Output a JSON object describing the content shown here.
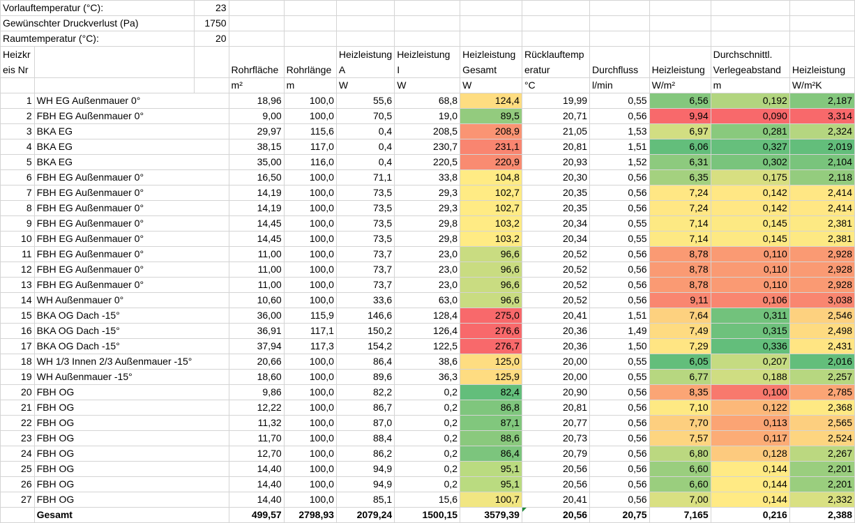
{
  "params": [
    {
      "label": "Vorlauftemperatur (°C):",
      "value": "23"
    },
    {
      "label": "Gewünschter Druckverlust (Pa)",
      "value": "1750"
    },
    {
      "label": "Raumtemperatur (°C):",
      "value": "20"
    }
  ],
  "header": {
    "col_a_top": "Heizkr",
    "col_a_bottom": "eis Nr",
    "cols": [
      {
        "line1": "",
        "line2": "Rohrfläche",
        "unit": "m²"
      },
      {
        "line1": "",
        "line2": "Rohrlänge",
        "unit": "m"
      },
      {
        "line1": "Heizleistung",
        "line2": "A",
        "unit": "W"
      },
      {
        "line1": "Heizleistung",
        "line2": "I",
        "unit": "W"
      },
      {
        "line1": "Heizleistung",
        "line2": "Gesamt",
        "unit": "W"
      },
      {
        "line1": "Rücklauftemp",
        "line2": "eratur",
        "unit": "°C"
      },
      {
        "line1": "",
        "line2": "Durchfluss",
        "unit": "l/min"
      },
      {
        "line1": "",
        "line2": "Heizleistung",
        "unit": "W/m²"
      },
      {
        "line1": "Durchschnittl.",
        "line2": "Verlegeabstand",
        "unit": "m"
      },
      {
        "line1": "",
        "line2": "Heizleistung",
        "unit": "W/m²K"
      }
    ]
  },
  "rows": [
    {
      "nr": "1",
      "name": "WH EG Außenmauer 0°",
      "rf": "18,96",
      "rl": "100,0",
      "ha": "55,6",
      "hi": "68,8",
      "hg": "124,4",
      "rt": "19,99",
      "df": "0,55",
      "hw": "6,56",
      "va": "0,192",
      "hk": "2,187",
      "hg_c": "#fedd81",
      "hw_c": "#84c77d",
      "va_c": "#b2d57f",
      "hk_c": "#84c77d"
    },
    {
      "nr": "2",
      "name": "FBH EG Außenmauer 0°",
      "rf": "9,00",
      "rl": "100,0",
      "ha": "70,5",
      "hi": "19,0",
      "hg": "89,5",
      "rt": "20,71",
      "df": "0,56",
      "hw": "9,94",
      "va": "0,090",
      "hk": "3,314",
      "hg_c": "#93cb7e",
      "hw_c": "#f8696b",
      "va_c": "#f8696b",
      "hk_c": "#f8696b"
    },
    {
      "nr": "3",
      "name": "BKA EG",
      "rf": "29,97",
      "rl": "115,6",
      "ha": "0,4",
      "hi": "208,5",
      "hg": "208,9",
      "rt": "21,05",
      "df": "1,53",
      "hw": "6,97",
      "va": "0,281",
      "hk": "2,324",
      "hg_c": "#fa9473",
      "hw_c": "#d2de82",
      "va_c": "#89c97d",
      "hk_c": "#b5d680"
    },
    {
      "nr": "4",
      "name": "BKA EG",
      "rf": "38,15",
      "rl": "117,0",
      "ha": "0,4",
      "hi": "230,7",
      "hg": "231,1",
      "rt": "20,81",
      "df": "1,51",
      "hw": "6,06",
      "va": "0,327",
      "hk": "2,019",
      "hg_c": "#f98570",
      "hw_c": "#63be7b",
      "va_c": "#66bf7c",
      "hk_c": "#63be7b"
    },
    {
      "nr": "5",
      "name": "BKA EG",
      "rf": "35,00",
      "rl": "116,0",
      "ha": "0,4",
      "hi": "220,5",
      "hg": "220,9",
      "rt": "20,93",
      "df": "1,52",
      "hw": "6,31",
      "va": "0,302",
      "hk": "2,104",
      "hg_c": "#f98b71",
      "hw_c": "#8dca7e",
      "va_c": "#79c47c",
      "hk_c": "#79c47c"
    },
    {
      "nr": "6",
      "name": "FBH EG Außenmauer 0°",
      "rf": "16,50",
      "rl": "100,0",
      "ha": "71,1",
      "hi": "33,8",
      "hg": "104,8",
      "rt": "20,30",
      "df": "0,56",
      "hw": "6,35",
      "va": "0,175",
      "hk": "2,118",
      "hg_c": "#ffeb84",
      "hw_c": "#a4d17f",
      "va_c": "#d7df81",
      "hk_c": "#94cc7e"
    },
    {
      "nr": "7",
      "name": "FBH EG Außenmauer 0°",
      "rf": "14,19",
      "rl": "100,0",
      "ha": "73,5",
      "hi": "29,3",
      "hg": "102,7",
      "rt": "20,35",
      "df": "0,56",
      "hw": "7,24",
      "va": "0,142",
      "hk": "2,414",
      "hg_c": "#ffeb84",
      "hw_c": "#ffe784",
      "va_c": "#ffe784",
      "hk_c": "#ffe784"
    },
    {
      "nr": "8",
      "name": "FBH EG Außenmauer 0°",
      "rf": "14,19",
      "rl": "100,0",
      "ha": "73,5",
      "hi": "29,3",
      "hg": "102,7",
      "rt": "20,35",
      "df": "0,56",
      "hw": "7,24",
      "va": "0,142",
      "hk": "2,414",
      "hg_c": "#ffeb84",
      "hw_c": "#ffe784",
      "va_c": "#ffe784",
      "hk_c": "#ffe784"
    },
    {
      "nr": "9",
      "name": "FBH EG Außenmauer 0°",
      "rf": "14,45",
      "rl": "100,0",
      "ha": "73,5",
      "hi": "29,8",
      "hg": "103,2",
      "rt": "20,34",
      "df": "0,55",
      "hw": "7,14",
      "va": "0,145",
      "hk": "2,381",
      "hg_c": "#ffeb84",
      "hw_c": "#fde983",
      "va_c": "#fde983",
      "hk_c": "#fde983"
    },
    {
      "nr": "10",
      "name": "FBH EG Außenmauer 0°",
      "rf": "14,45",
      "rl": "100,0",
      "ha": "73,5",
      "hi": "29,8",
      "hg": "103,2",
      "rt": "20,34",
      "df": "0,55",
      "hw": "7,14",
      "va": "0,145",
      "hk": "2,381",
      "hg_c": "#ffeb84",
      "hw_c": "#fde983",
      "va_c": "#fde983",
      "hk_c": "#fde983"
    },
    {
      "nr": "11",
      "name": "FBH EG Außenmauer 0°",
      "rf": "11,00",
      "rl": "100,0",
      "ha": "73,7",
      "hi": "23,0",
      "hg": "96,6",
      "rt": "20,52",
      "df": "0,56",
      "hw": "8,78",
      "va": "0,110",
      "hk": "2,928",
      "hg_c": "#c9dc81",
      "hw_c": "#fa9a73",
      "va_c": "#fa9a73",
      "hk_c": "#fa9a73"
    },
    {
      "nr": "12",
      "name": "FBH EG Außenmauer 0°",
      "rf": "11,00",
      "rl": "100,0",
      "ha": "73,7",
      "hi": "23,0",
      "hg": "96,6",
      "rt": "20,52",
      "df": "0,56",
      "hw": "8,78",
      "va": "0,110",
      "hk": "2,928",
      "hg_c": "#c9dc81",
      "hw_c": "#fa9a73",
      "va_c": "#fa9a73",
      "hk_c": "#fa9a73"
    },
    {
      "nr": "13",
      "name": "FBH EG Außenmauer 0°",
      "rf": "11,00",
      "rl": "100,0",
      "ha": "73,7",
      "hi": "23,0",
      "hg": "96,6",
      "rt": "20,52",
      "df": "0,56",
      "hw": "8,78",
      "va": "0,110",
      "hk": "2,928",
      "hg_c": "#c9dc81",
      "hw_c": "#fa9a73",
      "va_c": "#fa9a73",
      "hk_c": "#fa9a73"
    },
    {
      "nr": "14",
      "name": "WH Außenmauer 0°",
      "rf": "10,60",
      "rl": "100,0",
      "ha": "33,6",
      "hi": "63,0",
      "hg": "96,6",
      "rt": "20,52",
      "df": "0,56",
      "hw": "9,11",
      "va": "0,106",
      "hk": "3,038",
      "hg_c": "#c9dc81",
      "hw_c": "#f98670",
      "va_c": "#f98670",
      "hk_c": "#f98670"
    },
    {
      "nr": "15",
      "name": "BKA OG Dach -15°",
      "rf": "36,00",
      "rl": "115,9",
      "ha": "146,6",
      "hi": "128,4",
      "hg": "275,0",
      "rt": "20,41",
      "df": "1,51",
      "hw": "7,64",
      "va": "0,311",
      "hk": "2,546",
      "hg_c": "#f8696b",
      "hw_c": "#fdd17f",
      "va_c": "#72c27c",
      "hk_c": "#fdd17f"
    },
    {
      "nr": "16",
      "name": "BKA OG Dach -15°",
      "rf": "36,91",
      "rl": "117,1",
      "ha": "150,2",
      "hi": "126,4",
      "hg": "276,6",
      "rt": "20,36",
      "df": "1,49",
      "hw": "7,49",
      "va": "0,315",
      "hk": "2,498",
      "hg_c": "#f8696b",
      "hw_c": "#fedb81",
      "va_c": "#6ec17c",
      "hk_c": "#fedb81"
    },
    {
      "nr": "17",
      "name": "BKA OG Dach -15°",
      "rf": "37,94",
      "rl": "117,3",
      "ha": "154,2",
      "hi": "122,5",
      "hg": "276,7",
      "rt": "20,36",
      "df": "1,50",
      "hw": "7,29",
      "va": "0,336",
      "hk": "2,431",
      "hg_c": "#f8696b",
      "hw_c": "#ffe583",
      "va_c": "#63be7b",
      "hk_c": "#ffe583"
    },
    {
      "nr": "18",
      "name": "WH 1/3 Innen 2/3 Außenmauer -15°",
      "rf": "20,66",
      "rl": "100,0",
      "ha": "86,4",
      "hi": "38,6",
      "hg": "125,0",
      "rt": "20,00",
      "df": "0,55",
      "hw": "6,05",
      "va": "0,207",
      "hk": "2,016",
      "hg_c": "#fedd81",
      "hw_c": "#63be7b",
      "va_c": "#c5db81",
      "hk_c": "#63be7b"
    },
    {
      "nr": "19",
      "name": "WH Außenmauer -15°",
      "rf": "18,60",
      "rl": "100,0",
      "ha": "89,6",
      "hi": "36,3",
      "hg": "125,9",
      "rt": "20,00",
      "df": "0,55",
      "hw": "6,77",
      "va": "0,188",
      "hk": "2,257",
      "hg_c": "#fedc81",
      "hw_c": "#b7d780",
      "va_c": "#cfdd82",
      "hk_c": "#b7d780"
    },
    {
      "nr": "20",
      "name": "FBH OG",
      "rf": "9,86",
      "rl": "100,0",
      "ha": "82,2",
      "hi": "0,2",
      "hg": "82,4",
      "rt": "20,90",
      "df": "0,56",
      "hw": "8,35",
      "va": "0,100",
      "hk": "2,785",
      "hg_c": "#63be7b",
      "hw_c": "#fba575",
      "va_c": "#f8796d",
      "hk_c": "#fba575"
    },
    {
      "nr": "21",
      "name": "FBH OG",
      "rf": "12,22",
      "rl": "100,0",
      "ha": "86,7",
      "hi": "0,2",
      "hg": "86,8",
      "rt": "20,81",
      "df": "0,56",
      "hw": "7,10",
      "va": "0,122",
      "hk": "2,368",
      "hg_c": "#7fc67d",
      "hw_c": "#fee983",
      "va_c": "#fcb879",
      "hk_c": "#fee983"
    },
    {
      "nr": "22",
      "name": "FBH OG",
      "rf": "11,32",
      "rl": "100,0",
      "ha": "87,0",
      "hi": "0,2",
      "hg": "87,1",
      "rt": "20,77",
      "df": "0,56",
      "hw": "7,70",
      "va": "0,113",
      "hk": "2,565",
      "hg_c": "#81c77d",
      "hw_c": "#fdcf7f",
      "va_c": "#fba474",
      "hk_c": "#fdcf7f"
    },
    {
      "nr": "23",
      "name": "FBH OG",
      "rf": "11,70",
      "rl": "100,0",
      "ha": "88,4",
      "hi": "0,2",
      "hg": "88,6",
      "rt": "20,73",
      "df": "0,56",
      "hw": "7,57",
      "va": "0,117",
      "hk": "2,524",
      "hg_c": "#8ac97d",
      "hw_c": "#fdd580",
      "va_c": "#fcac76",
      "hk_c": "#fdd580"
    },
    {
      "nr": "24",
      "name": "FBH OG",
      "rf": "12,70",
      "rl": "100,0",
      "ha": "86,2",
      "hi": "0,2",
      "hg": "86,4",
      "rt": "20,79",
      "df": "0,56",
      "hw": "6,80",
      "va": "0,128",
      "hk": "2,267",
      "hg_c": "#7cc57d",
      "hw_c": "#bbd880",
      "va_c": "#fdca7e",
      "hk_c": "#bbd880"
    },
    {
      "nr": "25",
      "name": "FBH OG",
      "rf": "14,40",
      "rl": "100,0",
      "ha": "94,9",
      "hi": "0,2",
      "hg": "95,1",
      "rt": "20,56",
      "df": "0,56",
      "hw": "6,60",
      "va": "0,144",
      "hk": "2,201",
      "hg_c": "#badb80",
      "hw_c": "#9ace7e",
      "va_c": "#ffea84",
      "hk_c": "#9ace7e"
    },
    {
      "nr": "26",
      "name": "FBH OG",
      "rf": "14,40",
      "rl": "100,0",
      "ha": "94,9",
      "hi": "0,2",
      "hg": "95,1",
      "rt": "20,56",
      "df": "0,56",
      "hw": "6,60",
      "va": "0,144",
      "hk": "2,201",
      "hg_c": "#badb80",
      "hw_c": "#9ace7e",
      "va_c": "#ffea84",
      "hk_c": "#9ace7e"
    },
    {
      "nr": "27",
      "name": "FBH OG",
      "rf": "14,40",
      "rl": "100,0",
      "ha": "85,1",
      "hi": "15,6",
      "hg": "100,7",
      "rt": "20,41",
      "df": "0,56",
      "hw": "7,00",
      "va": "0,144",
      "hk": "2,332",
      "hg_c": "#f1e682",
      "hw_c": "#d9e082",
      "va_c": "#ffea84",
      "hk_c": "#d9e082"
    }
  ],
  "total": {
    "label": "Gesamt",
    "rf": "499,57",
    "rl": "2798,93",
    "ha": "2079,24",
    "hi": "1500,15",
    "hg": "3579,39",
    "rt": "20,56",
    "df": "20,75",
    "hw": "7,165",
    "va": "0,216",
    "hk": "2,388"
  },
  "colors": {
    "gridline": "#d4d4d4",
    "cf_low_green": "#63be7b",
    "cf_mid_yellow": "#ffeb84",
    "cf_high_red": "#f8696b"
  }
}
